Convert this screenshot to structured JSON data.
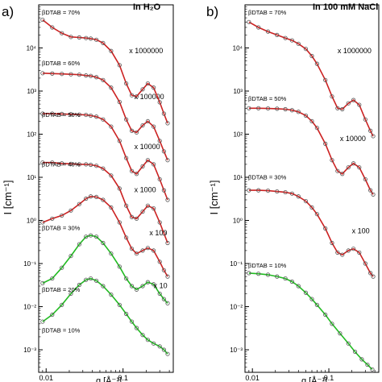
{
  "chart_data": [
    {
      "type": "scatter",
      "panel_label": "a)",
      "title": "In H₂O",
      "xlabel": "q [Å⁻¹]",
      "ylabel": "I [cm⁻¹]",
      "x_scale": "log",
      "y_scale": "log",
      "xlim": [
        0.008,
        0.45
      ],
      "ylim": [
        0.0003,
        100000
      ],
      "x_ticks": [
        {
          "value": 0.01,
          "label": "0.01"
        },
        {
          "value": 0.1,
          "label": "0.1"
        }
      ],
      "y_ticks": [
        {
          "value": 0.001,
          "label": "10⁻³"
        },
        {
          "value": 0.01,
          "label": "10⁻²"
        },
        {
          "value": 0.1,
          "label": "10⁻¹"
        },
        {
          "value": 1,
          "label": "10⁰"
        },
        {
          "value": 10,
          "label": "10¹"
        },
        {
          "value": 100,
          "label": "10²"
        },
        {
          "value": 1000,
          "label": "10³"
        },
        {
          "value": 10000,
          "label": "10⁴"
        }
      ],
      "series": [
        {
          "name": "βDTAB = 10%",
          "label_y": 0.0025,
          "fit_color": "#22bb22",
          "scale_label": "",
          "scale_label_q": 0,
          "scale_label_y": 0,
          "x": [
            0.009,
            0.012,
            0.016,
            0.021,
            0.027,
            0.033,
            0.038,
            0.045,
            0.055,
            0.07,
            0.09,
            0.11,
            0.13,
            0.15,
            0.18,
            0.21,
            0.25,
            0.3,
            0.34,
            0.38
          ],
          "y": [
            0.0045,
            0.0065,
            0.011,
            0.02,
            0.032,
            0.042,
            0.045,
            0.04,
            0.03,
            0.019,
            0.011,
            0.0068,
            0.0045,
            0.0032,
            0.0022,
            0.0017,
            0.0014,
            0.0012,
            0.001,
            0.0008
          ]
        },
        {
          "name": "βDTAB = 20%",
          "label_y": 0.022,
          "fit_color": "#22bb22",
          "scale_label": "x 10",
          "scale_label_q": 0.25,
          "scale_label_y": 0.027,
          "x": [
            0.009,
            0.012,
            0.016,
            0.021,
            0.027,
            0.033,
            0.038,
            0.045,
            0.055,
            0.07,
            0.09,
            0.11,
            0.13,
            0.15,
            0.18,
            0.21,
            0.25,
            0.3,
            0.34,
            0.38
          ],
          "y": [
            0.035,
            0.045,
            0.08,
            0.15,
            0.28,
            0.42,
            0.45,
            0.42,
            0.3,
            0.17,
            0.085,
            0.045,
            0.03,
            0.025,
            0.03,
            0.037,
            0.033,
            0.02,
            0.015,
            0.012
          ]
        },
        {
          "name": "βDTAB = 30%",
          "label_y": 0.6,
          "fit_color": "#cc2222",
          "scale_label": "x 100",
          "scale_label_q": 0.22,
          "scale_label_y": 0.45,
          "x": [
            0.009,
            0.012,
            0.016,
            0.021,
            0.027,
            0.033,
            0.038,
            0.045,
            0.055,
            0.07,
            0.09,
            0.11,
            0.13,
            0.15,
            0.18,
            0.21,
            0.25,
            0.3,
            0.34,
            0.38
          ],
          "y": [
            0.9,
            1.1,
            1.3,
            1.7,
            2.4,
            3.2,
            3.6,
            3.5,
            3.0,
            2.0,
            0.9,
            0.4,
            0.22,
            0.17,
            0.2,
            0.23,
            0.2,
            0.11,
            0.07,
            0.05
          ]
        },
        {
          "name": "βDTAB = 40%",
          "label_y": 18,
          "fit_color": "#cc2222",
          "scale_label": "x 1000",
          "scale_label_q": 0.14,
          "scale_label_y": 4.5,
          "x": [
            0.009,
            0.012,
            0.016,
            0.021,
            0.027,
            0.033,
            0.038,
            0.045,
            0.055,
            0.07,
            0.09,
            0.11,
            0.13,
            0.15,
            0.18,
            0.21,
            0.25,
            0.3,
            0.34,
            0.38
          ],
          "y": [
            22,
            22,
            21,
            20.5,
            20,
            20,
            19.5,
            18.5,
            16,
            11,
            5.5,
            2.2,
            1.2,
            1.1,
            1.6,
            2.2,
            1.9,
            0.9,
            0.5,
            0.3
          ]
        },
        {
          "name": "βDTAB = 50%",
          "label_y": 250,
          "fit_color": "#cc2222",
          "scale_label": "x 10000",
          "scale_label_q": 0.14,
          "scale_label_y": 45,
          "x": [
            0.009,
            0.012,
            0.016,
            0.021,
            0.027,
            0.033,
            0.038,
            0.045,
            0.055,
            0.07,
            0.09,
            0.11,
            0.13,
            0.15,
            0.18,
            0.21,
            0.25,
            0.3,
            0.34,
            0.38
          ],
          "y": [
            300,
            300,
            295,
            290,
            285,
            280,
            270,
            255,
            220,
            150,
            70,
            28,
            14,
            12,
            18,
            25,
            20,
            9,
            5,
            3
          ]
        },
        {
          "name": "βDTAB = 60%",
          "label_y": 4000,
          "fit_color": "#cc2222",
          "scale_label": "x 100000",
          "scale_label_q": 0.14,
          "scale_label_y": 650,
          "x": [
            0.009,
            0.012,
            0.016,
            0.021,
            0.027,
            0.033,
            0.038,
            0.045,
            0.055,
            0.07,
            0.09,
            0.11,
            0.13,
            0.15,
            0.18,
            0.21,
            0.25,
            0.3,
            0.34,
            0.38
          ],
          "y": [
            2600,
            2550,
            2500,
            2450,
            2400,
            2300,
            2250,
            2100,
            1800,
            1200,
            560,
            220,
            120,
            110,
            160,
            200,
            150,
            70,
            40,
            25
          ]
        },
        {
          "name": "βDTAB = 70%",
          "label_y": 60000,
          "fit_color": "#cc2222",
          "scale_label": "x 1000000",
          "scale_label_q": 0.12,
          "scale_label_y": 7500,
          "x": [
            0.009,
            0.012,
            0.016,
            0.021,
            0.027,
            0.033,
            0.038,
            0.045,
            0.055,
            0.07,
            0.09,
            0.11,
            0.13,
            0.15,
            0.18,
            0.21,
            0.25,
            0.3,
            0.34,
            0.38
          ],
          "y": [
            45000,
            30000,
            22000,
            18000,
            17500,
            17000,
            16500,
            15500,
            13000,
            8500,
            4000,
            1500,
            800,
            750,
            1100,
            1500,
            1200,
            550,
            300,
            180
          ]
        }
      ]
    },
    {
      "type": "scatter",
      "panel_label": "b)",
      "title": "In 100 mM NaCl",
      "xlabel": "q [Å⁻¹]",
      "ylabel": "I [cm⁻¹]",
      "x_scale": "log",
      "y_scale": "log",
      "xlim": [
        0.008,
        0.45
      ],
      "ylim": [
        0.0003,
        100000
      ],
      "x_ticks": [
        {
          "value": 0.01,
          "label": "0.01"
        },
        {
          "value": 0.1,
          "label": "0.1"
        }
      ],
      "y_ticks": [
        {
          "value": 0.001,
          "label": "10⁻³"
        },
        {
          "value": 0.01,
          "label": "10⁻²"
        },
        {
          "value": 0.1,
          "label": "10⁻¹"
        },
        {
          "value": 1,
          "label": "10⁰"
        },
        {
          "value": 10,
          "label": "10¹"
        },
        {
          "value": 100,
          "label": "10²"
        },
        {
          "value": 1000,
          "label": "10³"
        },
        {
          "value": 10000,
          "label": "10⁴"
        }
      ],
      "series": [
        {
          "name": "βDTAB = 10%",
          "label_y": 0.08,
          "fit_color": "#22bb22",
          "scale_label": "",
          "scale_label_q": 0,
          "scale_label_y": 0,
          "x": [
            0.009,
            0.012,
            0.016,
            0.021,
            0.027,
            0.033,
            0.04,
            0.05,
            0.06,
            0.07,
            0.09,
            0.11,
            0.14,
            0.18,
            0.22,
            0.27,
            0.32,
            0.37
          ],
          "y": [
            0.06,
            0.058,
            0.055,
            0.05,
            0.045,
            0.038,
            0.03,
            0.021,
            0.015,
            0.011,
            0.0065,
            0.004,
            0.0024,
            0.0014,
            0.0009,
            0.0006,
            0.00045,
            0.00035
          ]
        },
        {
          "name": "βDTAB = 30%",
          "label_y": 9,
          "fit_color": "#cc2222",
          "scale_label": "x 100",
          "scale_label_q": 0.2,
          "scale_label_y": 0.5,
          "x": [
            0.009,
            0.012,
            0.016,
            0.021,
            0.027,
            0.033,
            0.04,
            0.05,
            0.06,
            0.07,
            0.09,
            0.11,
            0.13,
            0.15,
            0.18,
            0.21,
            0.25,
            0.3,
            0.35,
            0.38
          ],
          "y": [
            5,
            5,
            4.9,
            4.7,
            4.5,
            4.2,
            3.6,
            2.8,
            2.0,
            1.4,
            0.65,
            0.3,
            0.18,
            0.16,
            0.2,
            0.22,
            0.18,
            0.1,
            0.06,
            0.05
          ]
        },
        {
          "name": "βDTAB = 50%",
          "label_y": 600,
          "fit_color": "#cc2222",
          "scale_label": "x 10000",
          "scale_label_q": 0.14,
          "scale_label_y": 70,
          "x": [
            0.009,
            0.012,
            0.016,
            0.021,
            0.027,
            0.033,
            0.04,
            0.05,
            0.06,
            0.07,
            0.09,
            0.11,
            0.13,
            0.15,
            0.18,
            0.21,
            0.25,
            0.3,
            0.35,
            0.38
          ],
          "y": [
            400,
            400,
            395,
            390,
            380,
            360,
            330,
            270,
            200,
            140,
            60,
            25,
            14,
            12,
            17,
            21,
            17,
            9,
            5,
            4
          ]
        },
        {
          "name": "βDTAB = 70%",
          "label_y": 60000,
          "fit_color": "#cc2222",
          "scale_label": "x 1000000",
          "scale_label_q": 0.13,
          "scale_label_y": 7500,
          "x": [
            0.009,
            0.012,
            0.016,
            0.021,
            0.027,
            0.033,
            0.04,
            0.05,
            0.06,
            0.07,
            0.09,
            0.11,
            0.13,
            0.15,
            0.18,
            0.21,
            0.25,
            0.3,
            0.35,
            0.38
          ],
          "y": [
            40000,
            30000,
            24000,
            20000,
            17000,
            15000,
            12500,
            9500,
            6500,
            4300,
            1800,
            750,
            400,
            380,
            520,
            620,
            480,
            220,
            120,
            90
          ]
        }
      ]
    }
  ]
}
